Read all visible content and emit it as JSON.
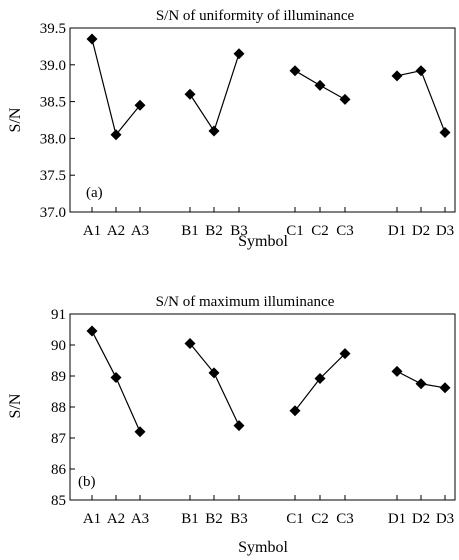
{
  "chart_data": [
    {
      "type": "line",
      "title": "S/N of uniformity of illuminance",
      "panel_label": "(a)",
      "xlabel": "Symbol",
      "ylabel": "S/N",
      "ylim": [
        37.0,
        39.5
      ],
      "yticks": [
        "37.0",
        "37.5",
        "38.0",
        "38.5",
        "39.0",
        "39.5"
      ],
      "categories": [
        "A1",
        "A2",
        "A3",
        "B1",
        "B2",
        "B3",
        "C1",
        "C2",
        "C3",
        "D1",
        "D2",
        "D3"
      ],
      "groups": [
        {
          "labels": [
            "A1",
            "A2",
            "A3"
          ],
          "values": [
            39.35,
            38.05,
            38.45
          ]
        },
        {
          "labels": [
            "B1",
            "B2",
            "B3"
          ],
          "values": [
            38.6,
            38.1,
            39.15
          ]
        },
        {
          "labels": [
            "C1",
            "C2",
            "C3"
          ],
          "values": [
            38.92,
            38.72,
            38.53
          ]
        },
        {
          "labels": [
            "D1",
            "D2",
            "D3"
          ],
          "values": [
            38.85,
            38.92,
            38.08
          ]
        }
      ],
      "grid": false,
      "marker": "diamond",
      "color": "#000000"
    },
    {
      "type": "line",
      "title": "S/N of maximum illuminance",
      "panel_label": "(b)",
      "xlabel": "Symbol",
      "ylabel": "S/N",
      "ylim": [
        85,
        91
      ],
      "yticks": [
        "85",
        "86",
        "87",
        "88",
        "89",
        "90",
        "91"
      ],
      "categories": [
        "A1",
        "A2",
        "A3",
        "B1",
        "B2",
        "B3",
        "C1",
        "C2",
        "C3",
        "D1",
        "D2",
        "D3"
      ],
      "groups": [
        {
          "labels": [
            "A1",
            "A2",
            "A3"
          ],
          "values": [
            90.45,
            88.95,
            87.2
          ]
        },
        {
          "labels": [
            "B1",
            "B2",
            "B3"
          ],
          "values": [
            90.05,
            89.1,
            87.4
          ]
        },
        {
          "labels": [
            "C1",
            "C2",
            "C3"
          ],
          "values": [
            87.88,
            88.92,
            89.72
          ]
        },
        {
          "labels": [
            "D1",
            "D2",
            "D3"
          ],
          "values": [
            89.15,
            88.75,
            88.62
          ]
        }
      ],
      "grid": false,
      "marker": "diamond",
      "color": "#000000"
    }
  ]
}
